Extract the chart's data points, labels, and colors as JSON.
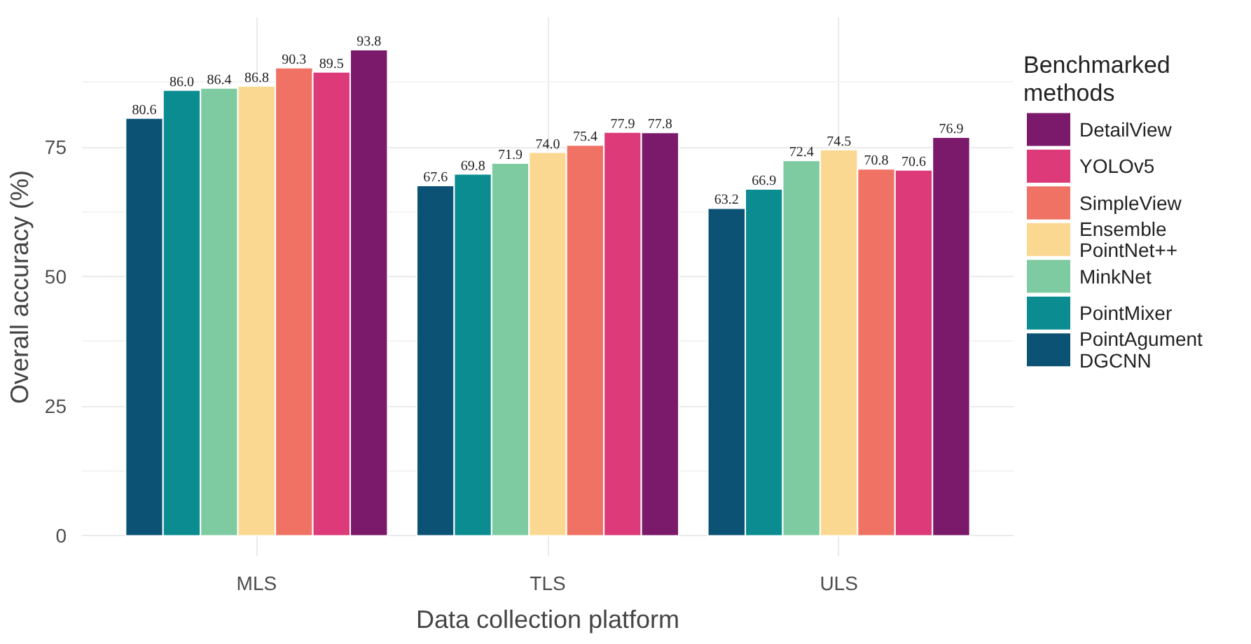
{
  "chart_data": {
    "type": "bar",
    "xlabel": "Data collection platform",
    "ylabel": "Overall accuracy (%)",
    "legend_title": "Benchmarked\nmethods",
    "categories": [
      "MLS",
      "TLS",
      "ULS"
    ],
    "series": [
      {
        "name": "PointAgument\nDGCNN",
        "color": "#0b5274",
        "values": [
          80.6,
          67.6,
          63.2
        ],
        "value_labels": [
          "80.6",
          "67.6",
          "63.2"
        ]
      },
      {
        "name": "PointMixer",
        "color": "#0a8c91",
        "values": [
          86.0,
          69.8,
          66.9
        ],
        "value_labels": [
          "86.0",
          "69.8",
          "66.9"
        ]
      },
      {
        "name": "MinkNet",
        "color": "#7ecba1",
        "values": [
          86.4,
          71.9,
          72.4
        ],
        "value_labels": [
          "86.4",
          "71.9",
          "72.4"
        ]
      },
      {
        "name": "Ensemble\nPointNet++",
        "color": "#fbd891",
        "values": [
          86.8,
          74.0,
          74.5
        ],
        "value_labels": [
          "86.8",
          "74.0",
          "74.5"
        ]
      },
      {
        "name": "SimpleView",
        "color": "#ef7265",
        "values": [
          90.3,
          75.4,
          70.8
        ],
        "value_labels": [
          "90.3",
          "75.4",
          "70.8"
        ]
      },
      {
        "name": "YOLOv5",
        "color": "#dc3a78",
        "values": [
          89.5,
          77.9,
          70.6
        ],
        "value_labels": [
          "89.5",
          "77.9",
          "70.6"
        ]
      },
      {
        "name": "DetailView",
        "color": "#7b1a6b",
        "values": [
          93.8,
          77.8,
          76.9
        ],
        "value_labels": [
          "93.8",
          "77.8",
          "76.9"
        ]
      }
    ],
    "ylim": [
      -4,
      100
    ],
    "yticks": [
      0,
      25,
      50,
      75
    ],
    "grid": true,
    "legend": "right"
  }
}
